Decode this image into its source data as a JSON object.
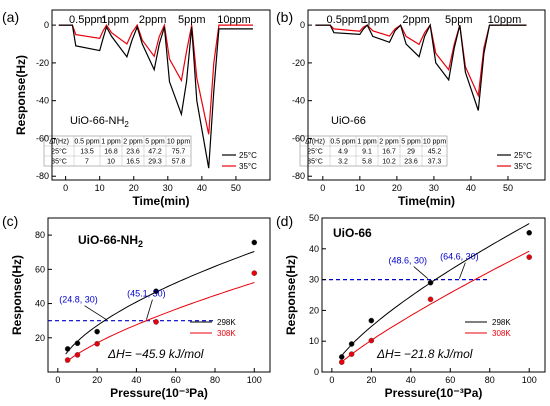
{
  "panels": {
    "a": {
      "letter": "(a)",
      "material": "UiO-66-NH",
      "material_sub": "2"
    },
    "b": {
      "letter": "(b)",
      "material": "UiO-66"
    },
    "c": {
      "letter": "(c)",
      "material": "UiO-66-NH",
      "material_sub": "2"
    },
    "d": {
      "letter": "(d)",
      "material": "UiO-66"
    }
  },
  "colors": {
    "s25": "#000000",
    "s35": "#e8000b",
    "guide": "#0000cc",
    "fitGray": "#222222"
  },
  "chart_data": [
    {
      "type": "line",
      "panel": "a",
      "title": "",
      "xlabel": "Time(min)",
      "ylabel": "Response(Hz)",
      "xlim": [
        -4,
        60
      ],
      "ylim": [
        -82,
        8
      ],
      "xticks": [
        0,
        10,
        20,
        30,
        40,
        50
      ],
      "yticks": [
        -80,
        -60,
        -40,
        -20,
        0
      ],
      "concentrations": [
        "0.5ppm",
        "1ppm",
        "2ppm",
        "5ppm",
        "10ppm"
      ],
      "series": [
        {
          "name": "25°C",
          "color": "#000000",
          "x": [
            -2,
            2,
            3,
            10,
            11,
            12,
            13.5,
            18,
            19.5,
            21,
            22.5,
            26,
            27.5,
            29,
            30.5,
            34,
            35.5,
            37,
            38.5,
            42,
            43.5,
            45,
            46.5,
            50,
            51.5,
            55
          ],
          "y": [
            0,
            0,
            -11,
            -13.5,
            -7,
            -1,
            -6,
            -16.8,
            -8,
            -1,
            -10,
            -23.6,
            -10,
            -1,
            -30,
            -47.2,
            -30,
            -1,
            -40,
            -75.7,
            -35,
            -2,
            -2,
            -2,
            -2,
            -2
          ]
        },
        {
          "name": "35°C",
          "color": "#e8000b",
          "x": [
            -2,
            2,
            3,
            10,
            11,
            12,
            13.5,
            18,
            19.5,
            21,
            22.5,
            26,
            27.5,
            29,
            30.5,
            34,
            35.5,
            37,
            38.5,
            42,
            43.5,
            45,
            46.5,
            50,
            51.5,
            55
          ],
          "y": [
            0,
            0,
            -5,
            -7,
            -3,
            0,
            -4,
            -10,
            -4,
            0,
            -8,
            -16.5,
            -6,
            0,
            -18,
            -29.3,
            -14,
            0,
            -28,
            -57.8,
            -20,
            0,
            0,
            0,
            0,
            0
          ]
        }
      ],
      "table": {
        "header": [
          "Δf(Hz)",
          "0.5 ppm",
          "1 ppm",
          "2 ppm",
          "5 ppm",
          "10 ppm"
        ],
        "rows": [
          [
            "25°C",
            "13.5",
            "16.8",
            "23.6",
            "47.2",
            "75.7"
          ],
          [
            "35°C",
            "7",
            "10",
            "16.5",
            "29.3",
            "57.8"
          ]
        ]
      }
    },
    {
      "type": "line",
      "panel": "b",
      "title": "",
      "xlabel": "Time(min)",
      "ylabel": "",
      "xlim": [
        -4,
        60
      ],
      "ylim": [
        -82,
        8
      ],
      "xticks": [
        0,
        10,
        20,
        30,
        40,
        50
      ],
      "yticks": [
        -80,
        -60,
        -40,
        -20,
        0
      ],
      "concentrations": [
        "0.5ppm",
        "1ppm",
        "2ppm",
        "5ppm",
        "10ppm"
      ],
      "series": [
        {
          "name": "25°C",
          "color": "#000000",
          "x": [
            -2,
            2,
            3,
            10,
            11,
            12,
            13.5,
            18,
            19.5,
            21,
            22.5,
            26,
            27.5,
            29,
            30.5,
            34,
            35.5,
            37,
            38.5,
            42,
            43.5,
            45,
            46.5,
            50,
            51.5,
            55
          ],
          "y": [
            0,
            0,
            -4,
            -4.9,
            -2,
            0,
            -6,
            -9.1,
            -3,
            0,
            -10,
            -16.7,
            -6,
            0,
            -20,
            -29,
            -12,
            0,
            -25,
            -45.2,
            -15,
            0,
            0,
            0,
            0,
            0
          ]
        },
        {
          "name": "35°C",
          "color": "#e8000b",
          "x": [
            -2,
            2,
            3,
            10,
            11,
            12,
            13.5,
            18,
            19.5,
            21,
            22.5,
            26,
            27.5,
            29,
            30.5,
            34,
            35.5,
            37,
            38.5,
            42,
            43.5,
            45,
            46.5,
            50,
            51.5,
            55
          ],
          "y": [
            0,
            0,
            -2,
            -3.2,
            -1,
            0,
            -3,
            -5.8,
            -2,
            0,
            -6,
            -10.2,
            -4,
            0,
            -15,
            -23.6,
            -10,
            0,
            -22,
            -37.3,
            -12,
            0,
            0,
            0,
            0,
            0
          ]
        }
      ],
      "table": {
        "header": [
          "Δf(Hz)",
          "0.5 ppm",
          "1 ppm",
          "2 ppm",
          "5 ppm",
          "10 ppm"
        ],
        "rows": [
          [
            "25°C",
            "4.9",
            "9.1",
            "16.7",
            "29",
            "45.2"
          ],
          [
            "35°C",
            "3.2",
            "5.8",
            "10.2",
            "23.6",
            "37.3"
          ]
        ]
      }
    },
    {
      "type": "scatter",
      "panel": "c",
      "title": "",
      "xlabel": "Pressure(10⁻³Pa)",
      "ylabel": "Response(Hz)",
      "xlim": [
        -5,
        108
      ],
      "ylim": [
        0,
        90
      ],
      "xticks": [
        0,
        20,
        40,
        60,
        80,
        100
      ],
      "yticks": [
        20,
        40,
        60,
        80
      ],
      "series": [
        {
          "name": "298K",
          "color": "#000000",
          "x": [
            5,
            10,
            20,
            50,
            100
          ],
          "y": [
            13.5,
            16.8,
            23.6,
            47.2,
            75.7
          ]
        },
        {
          "name": "308K",
          "color": "#e8000b",
          "x": [
            5,
            10,
            20,
            50,
            100
          ],
          "y": [
            7,
            10,
            16.5,
            29.3,
            57.8
          ]
        }
      ],
      "guide_y": 30,
      "annotations": [
        "(24.8, 30)",
        "(45.1, 30)"
      ],
      "annotation_points": [
        [
          24.8,
          30
        ],
        [
          45.1,
          30
        ]
      ],
      "dH": "ΔH= −45.9 kJ/mol"
    },
    {
      "type": "scatter",
      "panel": "d",
      "title": "",
      "xlabel": "Pressure(10⁻³Pa)",
      "ylabel": "Response(Hz)",
      "xlim": [
        -5,
        108
      ],
      "ylim": [
        0,
        50
      ],
      "xticks": [
        0,
        20,
        40,
        60,
        80,
        100
      ],
      "yticks": [
        0,
        10,
        20,
        30,
        40,
        50
      ],
      "series": [
        {
          "name": "298K",
          "color": "#000000",
          "x": [
            5,
            10,
            20,
            50,
            100
          ],
          "y": [
            4.9,
            9.1,
            16.7,
            29,
            45.2
          ]
        },
        {
          "name": "308K",
          "color": "#e8000b",
          "x": [
            5,
            10,
            20,
            50,
            100
          ],
          "y": [
            3.2,
            5.8,
            10.2,
            23.6,
            37.3
          ]
        }
      ],
      "guide_y": 30,
      "annotations": [
        "(48.6, 30)",
        "(64.6, 30)"
      ],
      "annotation_points": [
        [
          48.6,
          30
        ],
        [
          64.6,
          30
        ]
      ],
      "dH": "ΔH= −21.8 kJ/mol"
    }
  ]
}
